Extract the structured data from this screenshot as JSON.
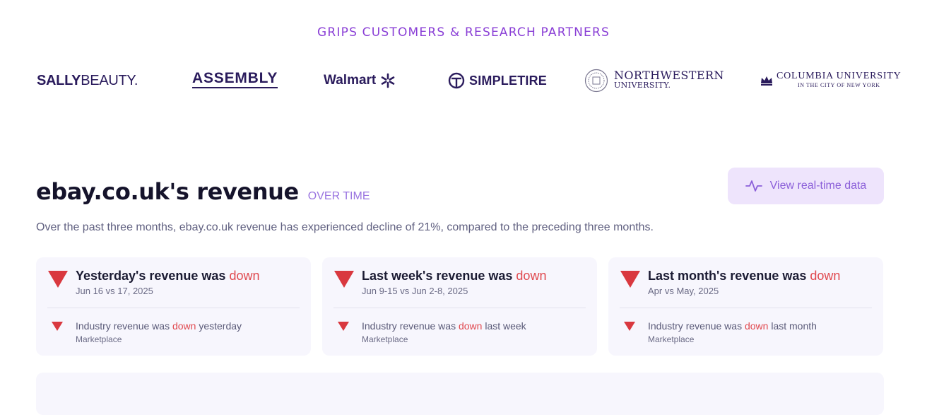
{
  "partners": {
    "heading": "GRIPS CUSTOMERS & RESEARCH PARTNERS",
    "logos": {
      "sally_bold": "SALLY",
      "sally_light": "BEAUTY.",
      "assembly": "ASSEMBLY",
      "walmart": "Walmart",
      "simpletire": "SIMPLETIRE",
      "northwestern_line1": "NORTHWESTERN",
      "northwestern_line2": "UNIVERSITY.",
      "columbia_line1": "COLUMBIA UNIVERSITY",
      "columbia_line2": "IN THE CITY OF NEW YORK"
    }
  },
  "revenue": {
    "title": "ebay.co.uk's revenue",
    "subtitle": "OVER TIME",
    "button_label": "View real-time data",
    "summary": "Over the past three months, ebay.co.uk revenue has experienced decline of 21%, compared to the preceding three months."
  },
  "cards": [
    {
      "head_prefix": "Yesterday's revenue was",
      "direction": "down",
      "period": "Jun 16 vs 17, 2025",
      "industry_prefix": "Industry revenue was",
      "industry_direction": "down",
      "industry_suffix": "yesterday",
      "category": "Marketplace"
    },
    {
      "head_prefix": "Last week's revenue was",
      "direction": "down",
      "period": "Jun 9-15 vs Jun 2-8, 2025",
      "industry_prefix": "Industry revenue was",
      "industry_direction": "down",
      "industry_suffix": "last week",
      "category": "Marketplace"
    },
    {
      "head_prefix": "Last month's revenue was",
      "direction": "down",
      "period": "Apr vs May, 2025",
      "industry_prefix": "Industry revenue was",
      "industry_direction": "down",
      "industry_suffix": "last month",
      "category": "Marketplace"
    }
  ],
  "colors": {
    "accent": "#8a3fd6",
    "down": "#e0484e",
    "card_bg": "#f7f6fd",
    "button_bg": "#eee4fc"
  },
  "icons": {
    "button": "activity-pulse-icon",
    "trend": "down-triangle-icon"
  }
}
